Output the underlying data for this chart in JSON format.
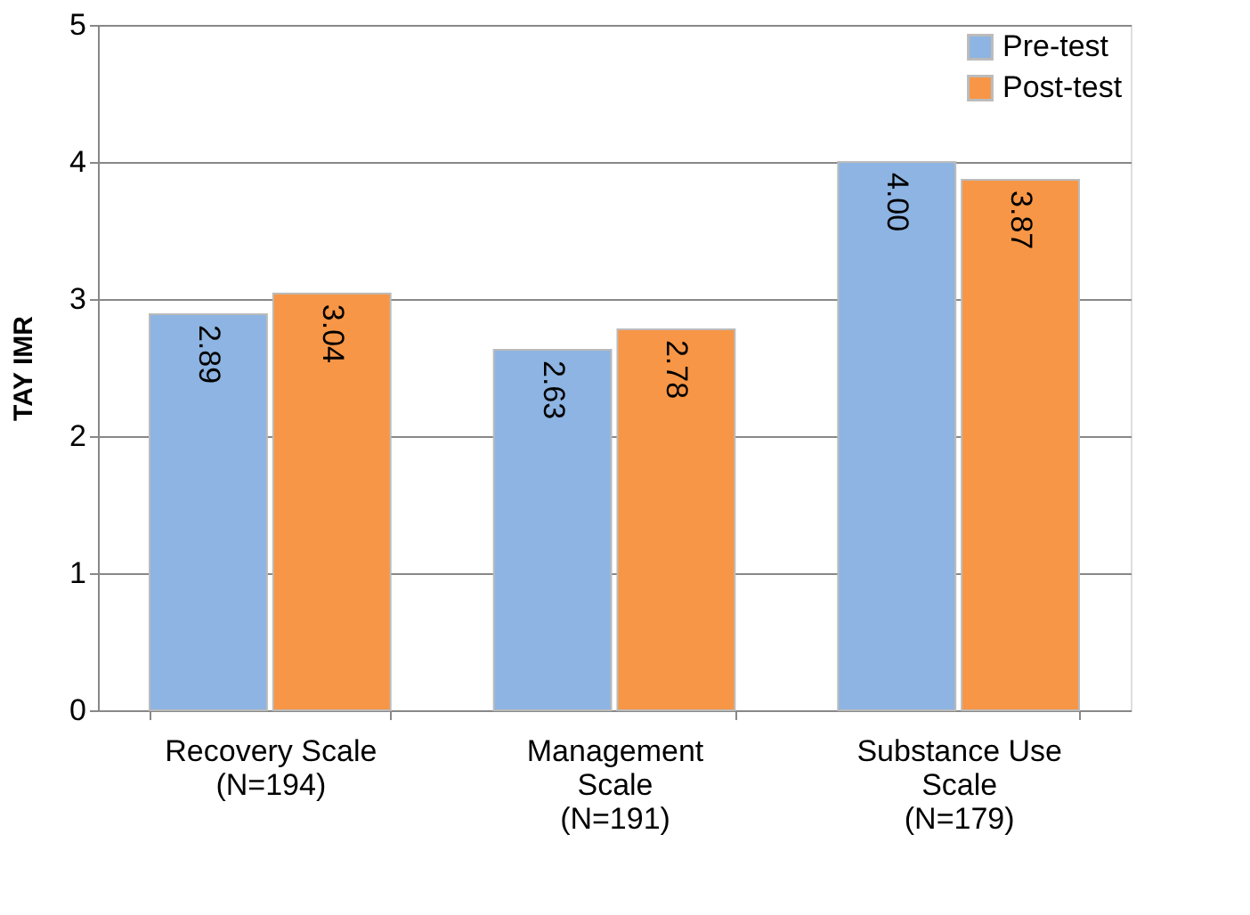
{
  "chart_data": {
    "type": "bar",
    "ylabel": "TAY IMR",
    "categories": [
      "Recovery Scale\n(N=194)",
      "Management\nScale\n(N=191)",
      "Substance Use\nScale\n(N=179)"
    ],
    "series": [
      {
        "name": "Pre-test",
        "color": "#8db4e2",
        "values": [
          2.89,
          2.63,
          4.0
        ],
        "value_labels": [
          "2.89",
          "2.63",
          "4.00"
        ]
      },
      {
        "name": "Post-test",
        "color": "#f79646",
        "values": [
          3.04,
          2.78,
          3.87
        ],
        "value_labels": [
          "3.04",
          "2.78",
          "3.87"
        ]
      }
    ],
    "ylim": [
      0,
      5
    ],
    "yticks": [
      0,
      1,
      2,
      3,
      4,
      5
    ],
    "grid": "y",
    "legend": "top right"
  }
}
